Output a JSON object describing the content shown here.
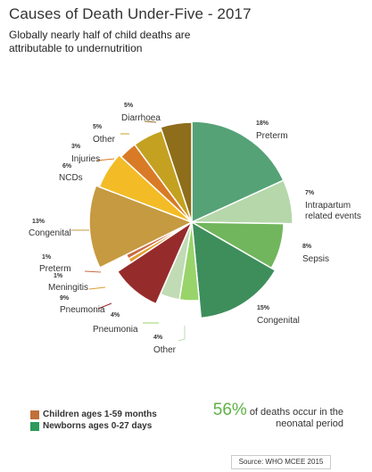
{
  "title": "Causes of Death Under-Five - 2017",
  "subtitle": "Globally nearly half of child deaths are attributable to undernutrition",
  "colors": {
    "children_legend": "#c0703a",
    "newborns_legend": "#2e9a5c",
    "callout_accent": "#5fb246"
  },
  "chart_data": {
    "type": "pie",
    "title": "Causes of Death Under-Five - 2017",
    "slices": [
      {
        "pct": "18%",
        "label": "Preterm",
        "value": 18,
        "group": "Newborns ages 0-27 days",
        "color": "#55a277"
      },
      {
        "pct": "7%",
        "label": "Intrapartum related events",
        "value": 7,
        "group": "Newborns ages 0-27 days",
        "color": "#b5d7aa"
      },
      {
        "pct": "8%",
        "label": "Sepsis",
        "value": 8,
        "group": "Newborns ages 0-27 days",
        "color": "#71b65c"
      },
      {
        "pct": "15%",
        "label": "Congenital",
        "value": 15,
        "group": "Newborns ages 0-27 days",
        "color": "#3e8e5c"
      },
      {
        "pct": "4%",
        "label": "Pneumonia",
        "value": 4,
        "group": "Newborns ages 0-27 days",
        "color": "#98d46a"
      },
      {
        "pct": "4%",
        "label": "Other",
        "value": 4,
        "group": "Newborns ages 0-27 days",
        "color": "#c1dbb5"
      },
      {
        "pct": "9%",
        "label": "Pneumonia",
        "value": 9,
        "group": "Children ages 1-59 months",
        "color": "#962b2c"
      },
      {
        "pct": "1%",
        "label": "Meningitis",
        "value": 1,
        "group": "Children ages 1-59 months",
        "color": "#e39d33"
      },
      {
        "pct": "1%",
        "label": "Preterm",
        "value": 1,
        "group": "Children ages 1-59 months",
        "color": "#ca6c45"
      },
      {
        "pct": "13%",
        "label": "Congenital",
        "value": 13,
        "group": "Children ages 1-59 months",
        "color": "#c69a41"
      },
      {
        "pct": "6%",
        "label": "NCDs",
        "value": 6,
        "group": "Children ages 1-59 months",
        "color": "#f3bc26"
      },
      {
        "pct": "3%",
        "label": "Injuries",
        "value": 3,
        "group": "Children ages 1-59 months",
        "color": "#d97b26"
      },
      {
        "pct": "5%",
        "label": "Other",
        "value": 5,
        "group": "Children ages 1-59 months",
        "color": "#c4a120"
      },
      {
        "pct": "5%",
        "label": "Diarrhoea",
        "value": 5,
        "group": "Children ages 1-59 months",
        "color": "#8e6e1b"
      }
    ],
    "legend": [
      {
        "label": "Children ages 1-59 months",
        "color": "#c0703a"
      },
      {
        "label": "Newborns ages 0-27 days",
        "color": "#2e9a5c"
      }
    ]
  },
  "callout": {
    "percent": "56%",
    "text": "of deaths occur in the neonatal period"
  },
  "source": "Source: WHO MCEE 2015"
}
